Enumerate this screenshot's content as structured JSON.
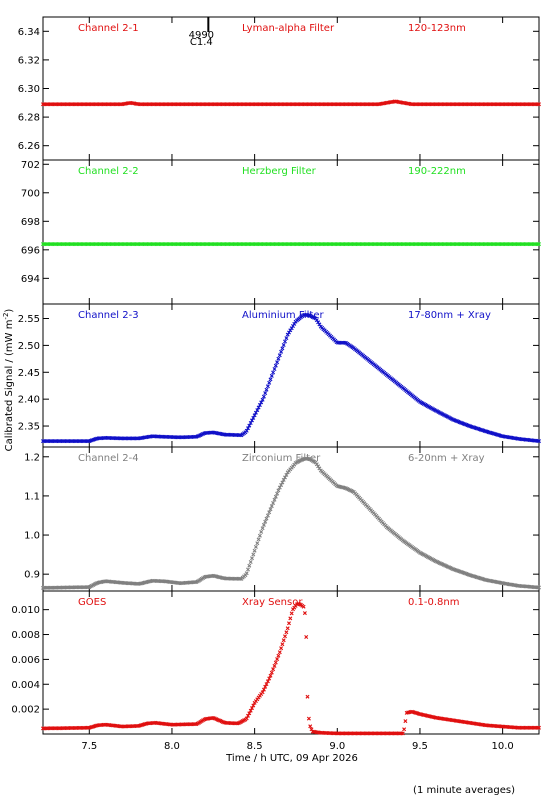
{
  "chart_data": {
    "type": "scatter",
    "x_axis": {
      "label": "Time / h UTC, 09 Apr 2026",
      "range": [
        7.22,
        10.22
      ],
      "ticks": [
        7.5,
        8.0,
        8.5,
        9.0,
        9.5,
        10.0
      ],
      "tick_labels": [
        "7.5",
        "8.0",
        "8.5",
        "9.0",
        "9.5",
        "10.0"
      ]
    },
    "ylabel": "Calibrated Signal / (mW m",
    "ylabel_sup": "-2",
    "ylabel_end": ")",
    "footnote": "(1 minute averages)",
    "flare_marker": {
      "x": 8.22,
      "label_top": "4990",
      "label_bottom": "C1.4"
    },
    "panels": [
      {
        "channel": "Channel 2-1",
        "filter": "Lyman-alpha Filter",
        "band": "120-123nm",
        "color": "#e01010",
        "ylim": [
          6.25,
          6.35
        ],
        "yticks": [
          6.26,
          6.28,
          6.3,
          6.32,
          6.34
        ],
        "ytick_labels": [
          "6.26",
          "6.28",
          "6.30",
          "6.32",
          "6.34"
        ],
        "series_x": [
          7.22,
          7.5,
          7.7,
          7.75,
          7.8,
          7.9,
          8.3,
          9.0,
          9.25,
          9.3,
          9.35,
          9.4,
          9.45,
          9.5,
          10.22
        ],
        "series_y": [
          6.289,
          6.289,
          6.289,
          6.29,
          6.289,
          6.289,
          6.289,
          6.289,
          6.289,
          6.29,
          6.291,
          6.29,
          6.289,
          6.289,
          6.289
        ]
      },
      {
        "channel": "Channel 2-2",
        "filter": "Herzberg Filter",
        "band": "190-222nm",
        "color": "#22e022",
        "ylim": [
          692.2,
          702.3
        ],
        "yticks": [
          694,
          696,
          698,
          700,
          702
        ],
        "ytick_labels": [
          "694",
          "696",
          "698",
          "700",
          "702"
        ],
        "series_x": [
          7.22,
          10.22
        ],
        "series_y": [
          696.4,
          696.4
        ]
      },
      {
        "channel": "Channel 2-3",
        "filter": "Aluminium Filter",
        "band": "17-80nm + Xray",
        "color": "#1010c8",
        "ylim": [
          2.311,
          2.577
        ],
        "yticks": [
          2.35,
          2.4,
          2.45,
          2.5,
          2.55
        ],
        "ytick_labels": [
          "2.35",
          "2.40",
          "2.45",
          "2.50",
          "2.55"
        ],
        "series_x": [
          7.22,
          7.5,
          7.55,
          7.6,
          7.7,
          7.8,
          7.88,
          7.95,
          8.05,
          8.15,
          8.2,
          8.25,
          8.32,
          8.42,
          8.45,
          8.5,
          8.55,
          8.6,
          8.65,
          8.7,
          8.75,
          8.8,
          8.83,
          8.87,
          8.9,
          8.95,
          9.0,
          9.05,
          9.1,
          9.2,
          9.3,
          9.4,
          9.5,
          9.6,
          9.7,
          9.8,
          9.9,
          10.0,
          10.1,
          10.22
        ],
        "series_y": [
          2.322,
          2.322,
          2.327,
          2.328,
          2.327,
          2.327,
          2.331,
          2.33,
          2.329,
          2.33,
          2.337,
          2.338,
          2.334,
          2.333,
          2.34,
          2.37,
          2.4,
          2.44,
          2.48,
          2.52,
          2.545,
          2.557,
          2.556,
          2.55,
          2.535,
          2.52,
          2.505,
          2.505,
          2.495,
          2.47,
          2.445,
          2.42,
          2.395,
          2.378,
          2.362,
          2.35,
          2.34,
          2.331,
          2.326,
          2.322
        ]
      },
      {
        "channel": "Channel 2-4",
        "filter": "Zirconium Filter",
        "band": "6-20nm + Xray",
        "color": "#808080",
        "ylim": [
          0.857,
          1.225
        ],
        "yticks": [
          0.9,
          1.0,
          1.1,
          1.2
        ],
        "ytick_labels": [
          "0.9",
          "1.0",
          "1.1",
          "1.2"
        ],
        "series_x": [
          7.22,
          7.5,
          7.55,
          7.6,
          7.7,
          7.8,
          7.88,
          7.95,
          8.05,
          8.15,
          8.2,
          8.25,
          8.32,
          8.42,
          8.45,
          8.5,
          8.55,
          8.6,
          8.65,
          8.7,
          8.75,
          8.8,
          8.83,
          8.87,
          8.9,
          8.95,
          9.0,
          9.05,
          9.1,
          9.2,
          9.3,
          9.4,
          9.5,
          9.6,
          9.7,
          9.8,
          9.9,
          10.0,
          10.1,
          10.22
        ],
        "series_y": [
          0.865,
          0.867,
          0.878,
          0.882,
          0.878,
          0.875,
          0.883,
          0.882,
          0.877,
          0.88,
          0.893,
          0.896,
          0.889,
          0.888,
          0.9,
          0.96,
          1.02,
          1.07,
          1.12,
          1.16,
          1.185,
          1.195,
          1.195,
          1.185,
          1.165,
          1.145,
          1.125,
          1.12,
          1.11,
          1.065,
          1.02,
          0.985,
          0.955,
          0.932,
          0.913,
          0.898,
          0.885,
          0.877,
          0.87,
          0.866
        ]
      },
      {
        "channel": "GOES",
        "filter": "Xray Sensor",
        "band": "0.1-0.8nm",
        "color": "#e01010",
        "ylim": [
          0.0,
          0.0115
        ],
        "yticks": [
          0.002,
          0.004,
          0.006,
          0.008,
          0.01
        ],
        "ytick_labels": [
          "0.002",
          "0.004",
          "0.006",
          "0.008",
          "0.010"
        ],
        "series_x": [
          7.22,
          7.5,
          7.55,
          7.6,
          7.7,
          7.8,
          7.85,
          7.9,
          8.0,
          8.15,
          8.2,
          8.25,
          8.32,
          8.4,
          8.45,
          8.5,
          8.55,
          8.6,
          8.65,
          8.7,
          8.73,
          8.76,
          8.78,
          8.8,
          8.81,
          8.82,
          8.83,
          8.85,
          8.9,
          9.0,
          9.2,
          9.4,
          9.42,
          9.45,
          9.5,
          9.6,
          9.7,
          9.8,
          9.9,
          10.0,
          10.1,
          10.22
        ],
        "series_y": [
          0.00045,
          0.0005,
          0.0007,
          0.00075,
          0.0006,
          0.00065,
          0.00085,
          0.0009,
          0.00075,
          0.0008,
          0.0012,
          0.0013,
          0.0009,
          0.00085,
          0.0012,
          0.0025,
          0.0034,
          0.0048,
          0.0065,
          0.0085,
          0.01,
          0.0105,
          0.0104,
          0.0102,
          0.009,
          0.003,
          0.0008,
          0.0002,
          0.0001,
          5e-05,
          5e-05,
          5e-05,
          0.0017,
          0.0018,
          0.0016,
          0.0013,
          0.0011,
          0.0009,
          0.0007,
          0.0006,
          0.0005,
          0.0005
        ]
      }
    ]
  }
}
